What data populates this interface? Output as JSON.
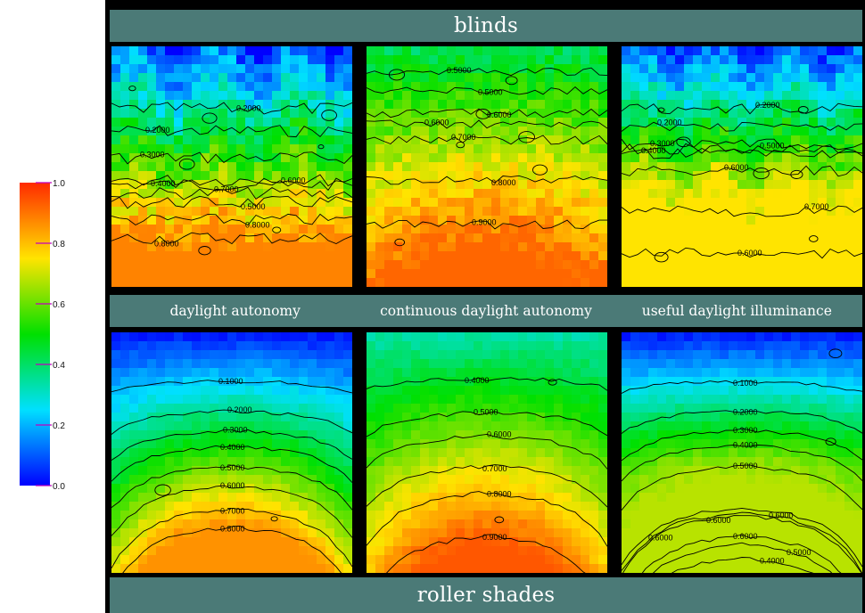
{
  "top_band": {
    "title": "blinds"
  },
  "bottom_band": {
    "title": "roller shades"
  },
  "column_labels": [
    "daylight autonomy",
    "continuous daylight autonomy",
    "useful daylight illuminance"
  ],
  "colorbar": {
    "ticks": [
      "1.0",
      "0.8",
      "0.6",
      "0.4",
      "0.2",
      "0.0"
    ],
    "colors": [
      "#ff2a00",
      "#ffe400",
      "#00e000",
      "#00e0ff",
      "#0000ff"
    ]
  },
  "maps": [
    {
      "row": "blinds",
      "metric": "daylight autonomy",
      "contour_labels": [
        "0.2000",
        "0.3000",
        "0.4000",
        "0.5000",
        "0.2000",
        "0.6000",
        "0.7000",
        "0.8000",
        "0.8000"
      ]
    },
    {
      "row": "blinds",
      "metric": "continuous daylight autonomy",
      "contour_labels": [
        "0.5000",
        "0.5000",
        "0.6000",
        "0.6000",
        "0.7000",
        "0.8000",
        "0.9000"
      ]
    },
    {
      "row": "blinds",
      "metric": "useful daylight illuminance",
      "contour_labels": [
        "0.2000",
        "0.3000",
        "0.4000",
        "0.2000",
        "0.5000",
        "0.6000",
        "0.7000",
        "0.6000"
      ]
    },
    {
      "row": "roller shades",
      "metric": "daylight autonomy",
      "contour_labels": [
        "0.1000",
        "0.2000",
        "0.3000",
        "0.4000",
        "0.5000",
        "0.6000",
        "0.7000",
        "0.8000"
      ]
    },
    {
      "row": "roller shades",
      "metric": "continuous daylight autonomy",
      "contour_labels": [
        "0.4000",
        "0.5000",
        "0.6000",
        "0.7000",
        "0.8000",
        "0.9000"
      ]
    },
    {
      "row": "roller shades",
      "metric": "useful daylight illuminance",
      "contour_labels": [
        "0.1000",
        "0.2000",
        "0.3000",
        "0.4000",
        "0.5000",
        "0.6000",
        "0.6000",
        "0.6000",
        "0.6000",
        "0.5000",
        "0.4000"
      ]
    }
  ]
}
